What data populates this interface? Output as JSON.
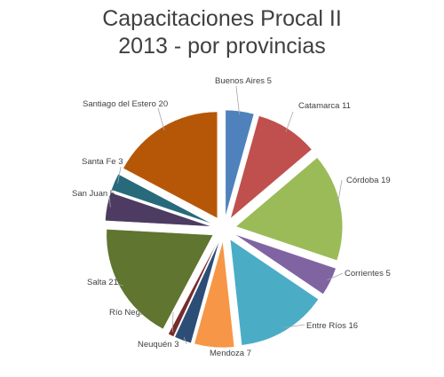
{
  "chart_data": {
    "type": "pie",
    "title_lines": [
      "Capacitaciones Procal II",
      "2013 - por provincias"
    ],
    "exploded": true,
    "legend": "none",
    "slices": [
      {
        "label": "Buenos Aires",
        "value": 5,
        "color": "#4f81bd"
      },
      {
        "label": "Catamarca",
        "value": 11,
        "color": "#c0504d"
      },
      {
        "label": "Córdoba",
        "value": 19,
        "color": "#9bbb59"
      },
      {
        "label": "Corrientes",
        "value": 5,
        "color": "#8064a2"
      },
      {
        "label": "Entre Ríos",
        "value": 16,
        "color": "#4bacc6"
      },
      {
        "label": "Mendoza",
        "value": 7,
        "color": "#f79646"
      },
      {
        "label": "Neuquén",
        "value": 3,
        "color": "#2c4d75"
      },
      {
        "label": "Río Negro",
        "value": 1,
        "color": "#772c2a"
      },
      {
        "label": "Salta",
        "value": 21,
        "color": "#5f7530"
      },
      {
        "label": "San Juan",
        "value": 5,
        "color": "#4d3b62"
      },
      {
        "label": "Santa Fe",
        "value": 3,
        "color": "#276a7c"
      },
      {
        "label": "Santiago del Estero",
        "value": 20,
        "color": "#b65708"
      }
    ]
  }
}
